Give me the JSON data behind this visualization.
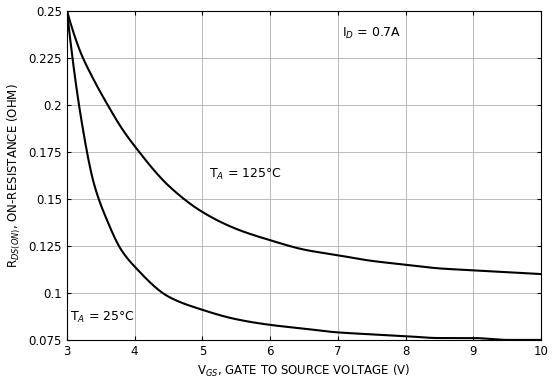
{
  "xlabel": "V$_{GS}$, GATE TO SOURCE VOLTAGE (V)",
  "ylabel": "R$_{DS(ON)}$, ON-RESISTANCE (OHM)",
  "xlim": [
    3,
    10
  ],
  "ylim": [
    0.075,
    0.25
  ],
  "yticks": [
    0.075,
    0.1,
    0.125,
    0.15,
    0.175,
    0.2,
    0.225,
    0.25
  ],
  "xticks": [
    3,
    4,
    5,
    6,
    7,
    8,
    9,
    10
  ],
  "annotation_id": "I$_D$ = 0.7A",
  "annotation_ta125": "T$_A$ = 125°C",
  "annotation_ta25": "T$_A$ = 25°C",
  "line_color": "#000000",
  "background_color": "#ffffff",
  "grid_color": "#b0b0b0",
  "curve_25_x": [
    3.0,
    3.2,
    3.4,
    3.6,
    3.8,
    4.0,
    4.5,
    5.0,
    5.5,
    6.0,
    6.5,
    7.0,
    7.5,
    8.0,
    8.5,
    9.0,
    9.5,
    10.0
  ],
  "curve_25_y": [
    0.25,
    0.195,
    0.158,
    0.138,
    0.123,
    0.114,
    0.098,
    0.091,
    0.086,
    0.083,
    0.081,
    0.079,
    0.078,
    0.077,
    0.076,
    0.076,
    0.075,
    0.075
  ],
  "curve_125_x": [
    3.0,
    3.2,
    3.4,
    3.6,
    3.8,
    4.0,
    4.5,
    5.0,
    5.5,
    6.0,
    6.5,
    7.0,
    7.5,
    8.0,
    8.5,
    9.0,
    9.5,
    10.0
  ],
  "curve_125_y": [
    0.25,
    0.228,
    0.213,
    0.2,
    0.188,
    0.178,
    0.157,
    0.143,
    0.134,
    0.128,
    0.123,
    0.12,
    0.117,
    0.115,
    0.113,
    0.112,
    0.111,
    0.11
  ]
}
